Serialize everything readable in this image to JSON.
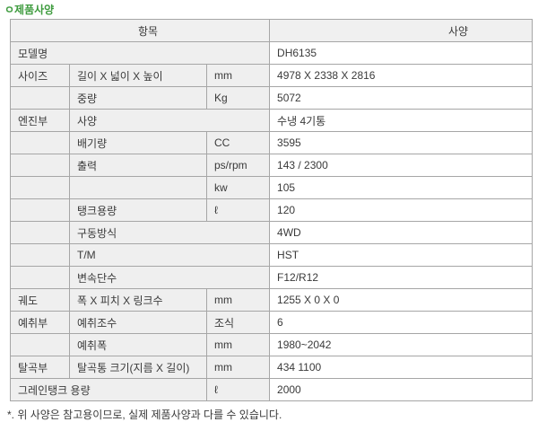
{
  "page": {
    "title": "ㅇ제품사양",
    "footnote": "*. 위 사양은 참고용이므로, 실제 제품사양과 다를 수 있습니다.",
    "colors": {
      "title_green": "#3e9b3e",
      "header_bg": "#f0f0f0",
      "label_bg": "#efefef",
      "border_gray": "#a6a6a6",
      "text_gray": "#3a3a3a"
    }
  },
  "table": {
    "headers": {
      "item": "항목",
      "spec": "사양"
    },
    "rows": [
      [
        {
          "t": "모델명",
          "c": 3,
          "k": "label"
        },
        {
          "t": "DH6135",
          "k": "value"
        }
      ],
      [
        {
          "t": "사이즈",
          "k": "label"
        },
        {
          "t": "길이 X 넓이 X 높이",
          "k": "label"
        },
        {
          "t": "mm",
          "k": "label"
        },
        {
          "t": "4978 X 2338 X 2816",
          "k": "value"
        }
      ],
      [
        {
          "t": "",
          "k": "label"
        },
        {
          "t": "중량",
          "k": "label"
        },
        {
          "t": "Kg",
          "k": "label"
        },
        {
          "t": "5072",
          "k": "value"
        }
      ],
      [
        {
          "t": "엔진부",
          "k": "label"
        },
        {
          "t": "사양",
          "c": 2,
          "k": "label"
        },
        {
          "t": "수냉 4기통",
          "k": "value"
        }
      ],
      [
        {
          "t": "",
          "k": "label"
        },
        {
          "t": "배기량",
          "k": "label"
        },
        {
          "t": "CC",
          "k": "label"
        },
        {
          "t": "3595",
          "k": "value"
        }
      ],
      [
        {
          "t": "",
          "k": "label"
        },
        {
          "t": "출력",
          "k": "label"
        },
        {
          "t": "ps/rpm",
          "k": "label"
        },
        {
          "t": "143 / 2300",
          "k": "value"
        }
      ],
      [
        {
          "t": "",
          "k": "label"
        },
        {
          "t": "",
          "k": "label"
        },
        {
          "t": "kw",
          "k": "label"
        },
        {
          "t": "105",
          "k": "value"
        }
      ],
      [
        {
          "t": "",
          "k": "label"
        },
        {
          "t": "탱크용량",
          "k": "label"
        },
        {
          "t": "ℓ",
          "k": "label"
        },
        {
          "t": "120",
          "k": "value"
        }
      ],
      [
        {
          "t": "",
          "k": "label"
        },
        {
          "t": "구동방식",
          "c": 2,
          "k": "label"
        },
        {
          "t": "4WD",
          "k": "value"
        }
      ],
      [
        {
          "t": "",
          "k": "label"
        },
        {
          "t": "T/M",
          "c": 2,
          "k": "label"
        },
        {
          "t": "HST",
          "k": "value"
        }
      ],
      [
        {
          "t": "",
          "k": "label"
        },
        {
          "t": "변속단수",
          "c": 2,
          "k": "label"
        },
        {
          "t": "F12/R12",
          "k": "value"
        }
      ],
      [
        {
          "t": "궤도",
          "k": "label"
        },
        {
          "t": "폭 X 피치 X 링크수",
          "k": "label"
        },
        {
          "t": "mm",
          "k": "label"
        },
        {
          "t": "1255 X 0 X 0",
          "k": "value"
        }
      ],
      [
        {
          "t": "예취부",
          "k": "label"
        },
        {
          "t": "예취조수",
          "k": "label"
        },
        {
          "t": "조식",
          "k": "label"
        },
        {
          "t": "6",
          "k": "value"
        }
      ],
      [
        {
          "t": "",
          "k": "label"
        },
        {
          "t": "예취폭",
          "k": "label"
        },
        {
          "t": "mm",
          "k": "label"
        },
        {
          "t": "1980~2042",
          "k": "value"
        }
      ],
      [
        {
          "t": "탈곡부",
          "k": "label"
        },
        {
          "t": "탈곡통 크기(지름 X 길이)",
          "k": "label"
        },
        {
          "t": "mm",
          "k": "label"
        },
        {
          "t": "434 1100",
          "k": "value"
        }
      ],
      [
        {
          "t": "그레인탱크 용량",
          "c": 2,
          "k": "label"
        },
        {
          "t": "ℓ",
          "k": "label"
        },
        {
          "t": "2000",
          "k": "value"
        }
      ]
    ]
  }
}
